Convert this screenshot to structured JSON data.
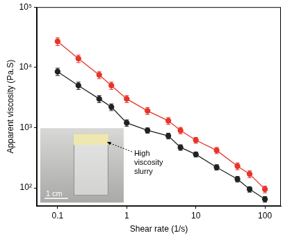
{
  "chart_data": {
    "type": "line",
    "x_label": "Shear rate (1/s)",
    "y_label": "Apparent viscosity (Pa.S)",
    "log": true,
    "grid": false,
    "x": [
      0.1,
      0.2,
      0.4,
      0.6,
      1,
      2,
      4,
      6,
      10,
      20,
      40,
      60,
      100
    ],
    "series": [
      {
        "color": "#e8342a",
        "marker": "circle",
        "line_style": "solid",
        "values": [
          27000,
          14000,
          7500,
          5000,
          3000,
          1900,
          1300,
          900,
          620,
          420,
          230,
          170,
          95
        ],
        "errors": [
          4000,
          2000,
          1000,
          700,
          400,
          250,
          170,
          110,
          70,
          50,
          30,
          22,
          12
        ]
      },
      {
        "color": "#222222",
        "marker": "circle",
        "line_style": "solid",
        "values": [
          8500,
          5000,
          3000,
          2200,
          1200,
          900,
          730,
          470,
          360,
          220,
          140,
          95,
          65
        ],
        "errors": [
          1200,
          700,
          400,
          280,
          150,
          90,
          80,
          50,
          35,
          22,
          15,
          10,
          7
        ]
      }
    ],
    "xlim": [
      0.05,
      170
    ],
    "xticks": [
      0.1,
      1,
      10,
      100
    ],
    "ylim": [
      50,
      100000
    ],
    "yticks": [
      {
        "value": 100,
        "label": "10²"
      },
      {
        "value": 1000,
        "label": "10³"
      },
      {
        "value": 10000,
        "label": "10⁴"
      },
      {
        "value": 100000,
        "label": "10⁵"
      }
    ],
    "annotations": [
      {
        "text": "High viscosity slurry"
      },
      {
        "text": "1 cm"
      }
    ]
  }
}
